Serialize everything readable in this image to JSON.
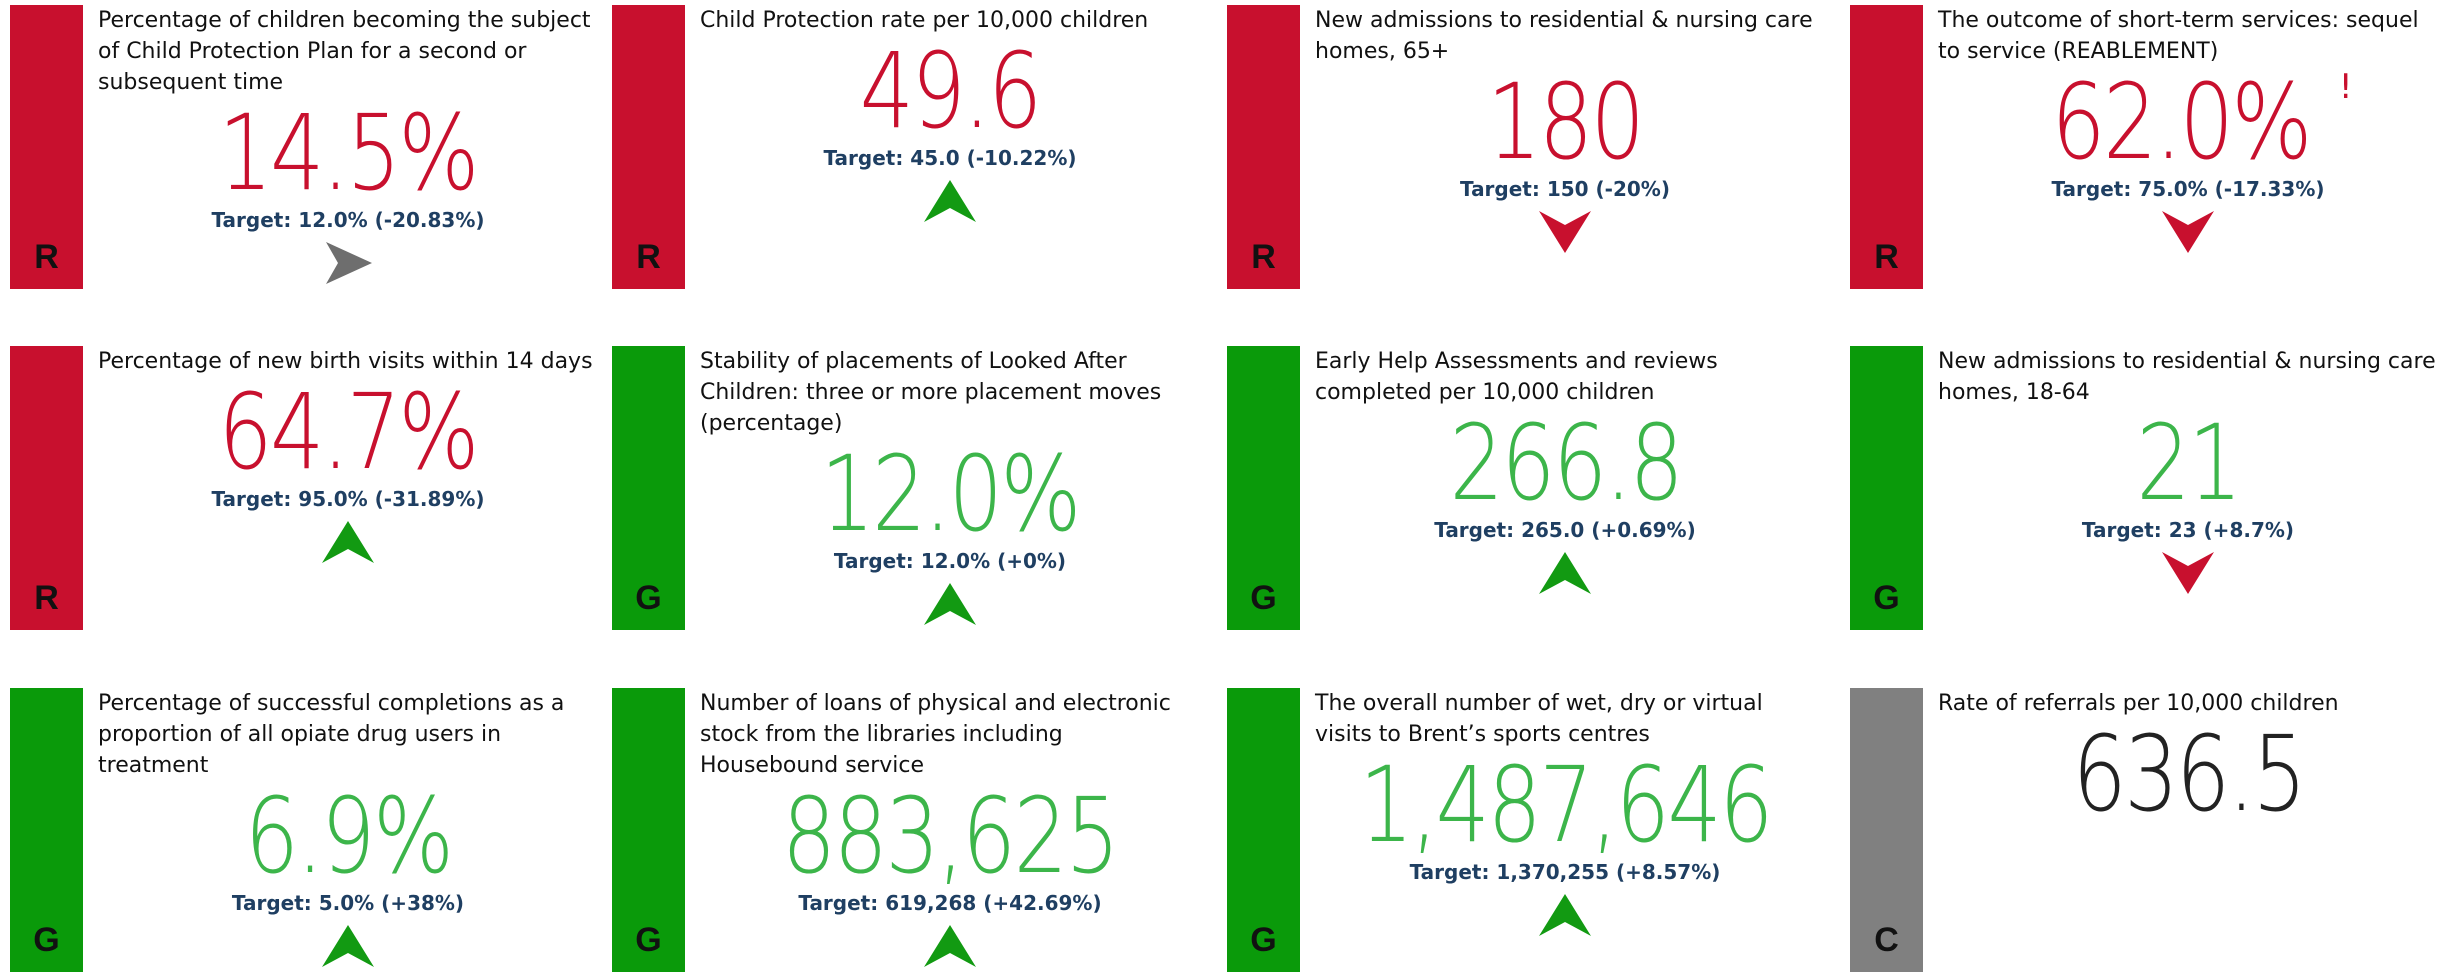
{
  "cards": [
    {
      "status": "R",
      "title": "Percentage of children becoming the subject of Child Protection Plan for a second or subsequent time",
      "value": "14.5%",
      "target": "Target: 12.0% (-20.83%)",
      "arrow": "right",
      "color": "#c8102e"
    },
    {
      "status": "R",
      "title": "Child Protection rate per 10,000 children",
      "value": "49.6",
      "target": "Target: 45.0 (-10.22%)",
      "arrow": "up",
      "color": "#c8102e"
    },
    {
      "status": "R",
      "title": "New admissions to residential & nursing care homes, 65+",
      "value": "180",
      "target": "Target: 150 (-20%)",
      "arrow": "down",
      "color": "#c8102e"
    },
    {
      "status": "R",
      "title": "The outcome of short-term services: sequel to service (REABLEMENT)",
      "value": "62.0%",
      "flag": "!",
      "target": "Target: 75.0% (-17.33%)",
      "arrow": "down",
      "color": "#c8102e"
    },
    {
      "status": "R",
      "title": "Percentage of new birth visits within 14 days",
      "value": "64.7%",
      "target": "Target: 95.0% (-31.89%)",
      "arrow": "up",
      "color": "#c8102e"
    },
    {
      "status": "G",
      "title": "Stability of placements of Looked After Children: three or more placement moves (percentage)",
      "value": "12.0%",
      "target": "Target: 12.0% (+0%)",
      "arrow": "up",
      "color": "#0a9a0a"
    },
    {
      "status": "G",
      "title": "Early Help Assessments and reviews completed per 10,000 children",
      "value": "266.8",
      "target": "Target: 265.0 (+0.69%)",
      "arrow": "up",
      "color": "#0a9a0a"
    },
    {
      "status": "G",
      "title": "New admissions to residential & nursing care homes, 18-64",
      "value": "21",
      "target": "Target: 23 (+8.7%)",
      "arrow": "down",
      "color": "#0a9a0a"
    },
    {
      "status": "G",
      "title": "Percentage of successful completions as a proportion of all opiate drug users in treatment",
      "value": "6.9%",
      "target": "Target: 5.0% (+38%)",
      "arrow": "up",
      "color": "#0a9a0a"
    },
    {
      "status": "G",
      "title": "Number of loans of physical and electronic stock from the libraries including Housebound service",
      "value": "883,625",
      "target": "Target: 619,268 (+42.69%)",
      "arrow": "up",
      "color": "#0a9a0a"
    },
    {
      "status": "G",
      "title": "The overall number of wet, dry or virtual visits to Brent’s sports centres",
      "value": "1,487,646",
      "target": "Target: 1,370,255 (+8.57%)",
      "arrow": "up",
      "color": "#0a9a0a"
    },
    {
      "status": "C",
      "title": "Rate of referrals per 10,000 children",
      "value": "636.5",
      "arrow": "none",
      "color": "#808080"
    }
  ]
}
